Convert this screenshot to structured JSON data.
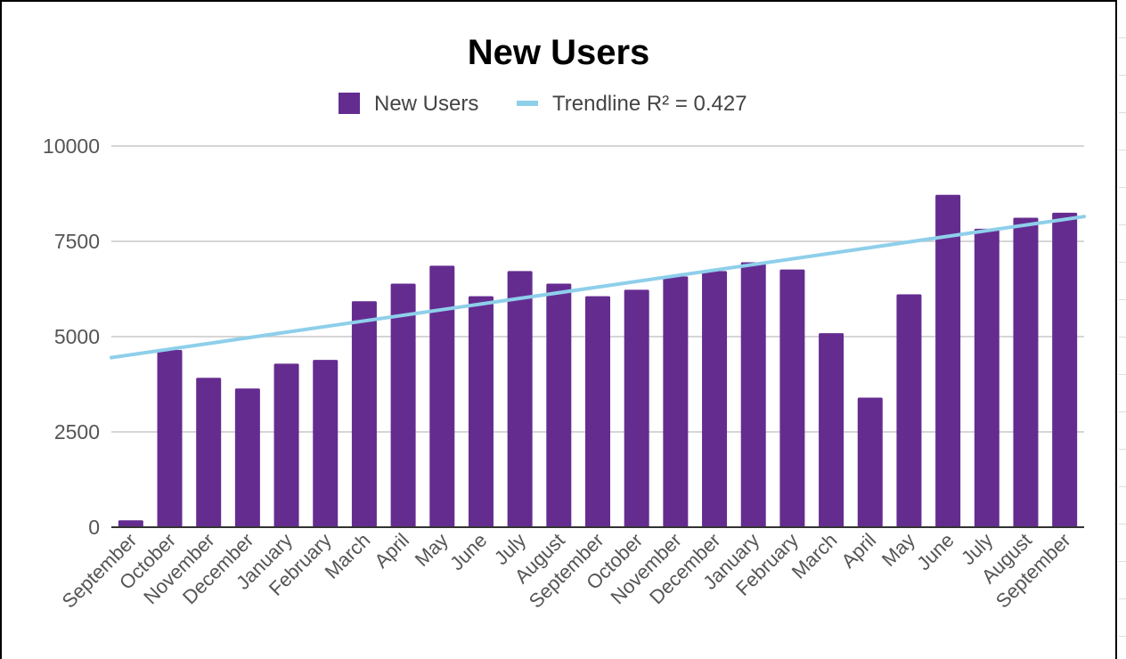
{
  "chart_data": {
    "type": "bar",
    "title": "New Users",
    "xlabel": "",
    "ylabel": "",
    "ylim": [
      0,
      10000
    ],
    "yticks": [
      0,
      2500,
      5000,
      7500,
      10000
    ],
    "grid": true,
    "legend_position": "top",
    "categories": [
      "September",
      "October",
      "November",
      "December",
      "January",
      "February",
      "March",
      "April",
      "May",
      "June",
      "July",
      "August",
      "September",
      "October",
      "November",
      "December",
      "January",
      "February",
      "March",
      "April",
      "May",
      "June",
      "July",
      "August",
      "September"
    ],
    "series": [
      {
        "name": "New Users",
        "color": "#652c90",
        "values": [
          180,
          4650,
          3920,
          3640,
          4290,
          4390,
          5930,
          6390,
          6860,
          6060,
          6720,
          6390,
          6060,
          6230,
          6580,
          6720,
          6950,
          6760,
          5090,
          3400,
          6110,
          8720,
          7830,
          8120,
          8250
        ]
      }
    ],
    "trendline": {
      "label": "Trendline R² = 0.427",
      "color": "#8ecfea",
      "start_value": 4450,
      "end_value": 8150
    }
  }
}
